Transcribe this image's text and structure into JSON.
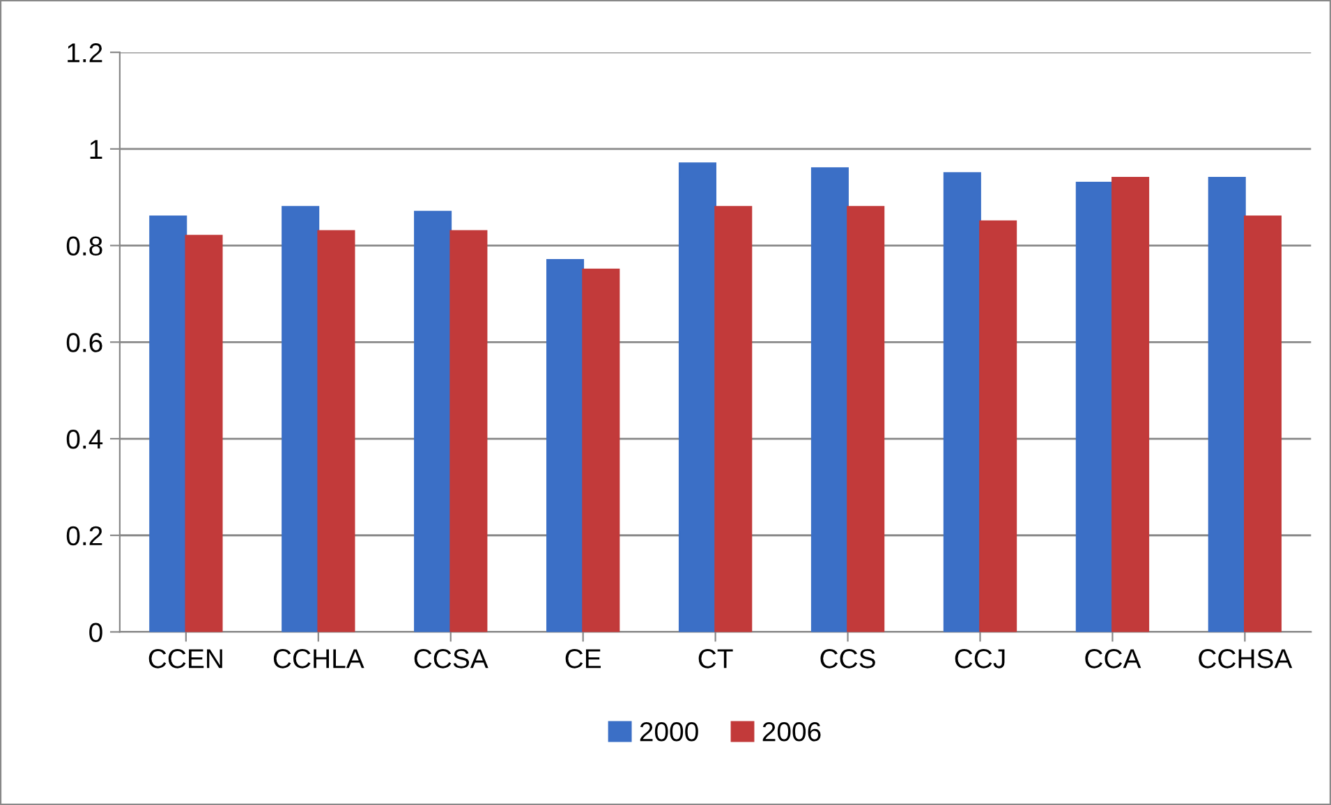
{
  "chart_data": {
    "type": "bar",
    "categories": [
      "CCEN",
      "CCHLA",
      "CCSA",
      "CE",
      "CT",
      "CCS",
      "CCJ",
      "CCA",
      "CCHSA"
    ],
    "series": [
      {
        "name": "2000",
        "color": "#3b6fc6",
        "values": [
          0.86,
          0.88,
          0.87,
          0.77,
          0.97,
          0.96,
          0.95,
          0.93,
          0.94
        ]
      },
      {
        "name": "2006",
        "color": "#c23a3a",
        "values": [
          0.82,
          0.83,
          0.83,
          0.75,
          0.88,
          0.88,
          0.85,
          0.94,
          0.86
        ]
      }
    ],
    "ylim": [
      0,
      1.2
    ],
    "yticks": [
      0,
      0.2,
      0.4,
      0.6,
      0.8,
      1,
      1.2
    ],
    "grid": "y",
    "legend": "bottom"
  }
}
